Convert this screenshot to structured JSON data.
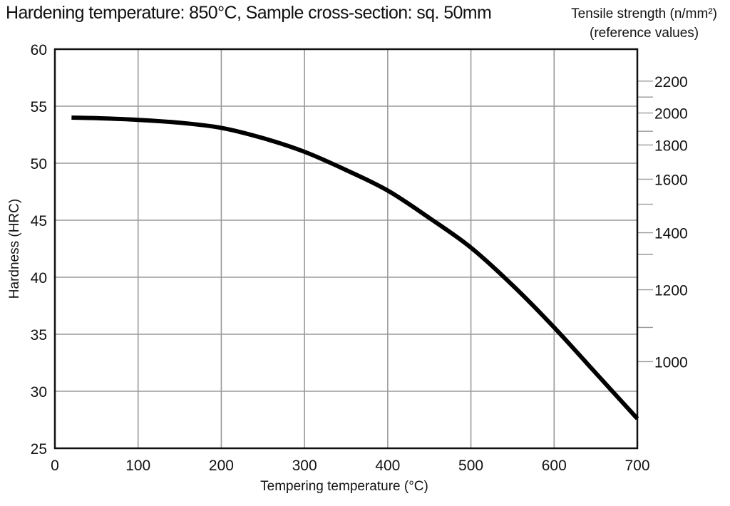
{
  "chart_data": {
    "type": "line",
    "title": "Hardening temperature: 850°C,  Sample cross-section: sq. 50mm",
    "xlabel": "Tempering temperature (°C)",
    "ylabel": "Hardness (HRC)",
    "y2label": "Tensile strength (n/mm²)",
    "y2label_note": "(reference values)",
    "xlim": [
      0,
      700
    ],
    "ylim": [
      25,
      60
    ],
    "x_ticks": [
      0,
      100,
      200,
      300,
      400,
      500,
      600,
      700
    ],
    "y_ticks": [
      25,
      30,
      35,
      40,
      45,
      50,
      55,
      60
    ],
    "y2_ticks": [
      {
        "label": "2200",
        "hrc": 57.2
      },
      {
        "label": "2000",
        "hrc": 54.4
      },
      {
        "label": "1800",
        "hrc": 51.6
      },
      {
        "label": "1600",
        "hrc": 48.6
      },
      {
        "label": "1400",
        "hrc": 43.9
      },
      {
        "label": "1200",
        "hrc": 38.9
      },
      {
        "label": "1000",
        "hrc": 32.6
      }
    ],
    "y2_minor_ticks_hrc": [
      55.8,
      52.8,
      46.4,
      42.0,
      35.6
    ],
    "grid": true,
    "legend": null,
    "series": [
      {
        "name": "Hardness",
        "x": [
          20,
          50,
          100,
          150,
          200,
          250,
          300,
          350,
          400,
          450,
          500,
          550,
          600,
          650,
          700
        ],
        "y": [
          54.0,
          53.95,
          53.8,
          53.55,
          53.1,
          52.2,
          51.0,
          49.4,
          47.6,
          45.2,
          42.6,
          39.3,
          35.6,
          31.6,
          27.6
        ]
      }
    ]
  },
  "colors": {
    "background": "#ffffff",
    "axis": "#111111",
    "grid": "#9a9a9a",
    "curve": "#000000",
    "text": "#111111"
  }
}
